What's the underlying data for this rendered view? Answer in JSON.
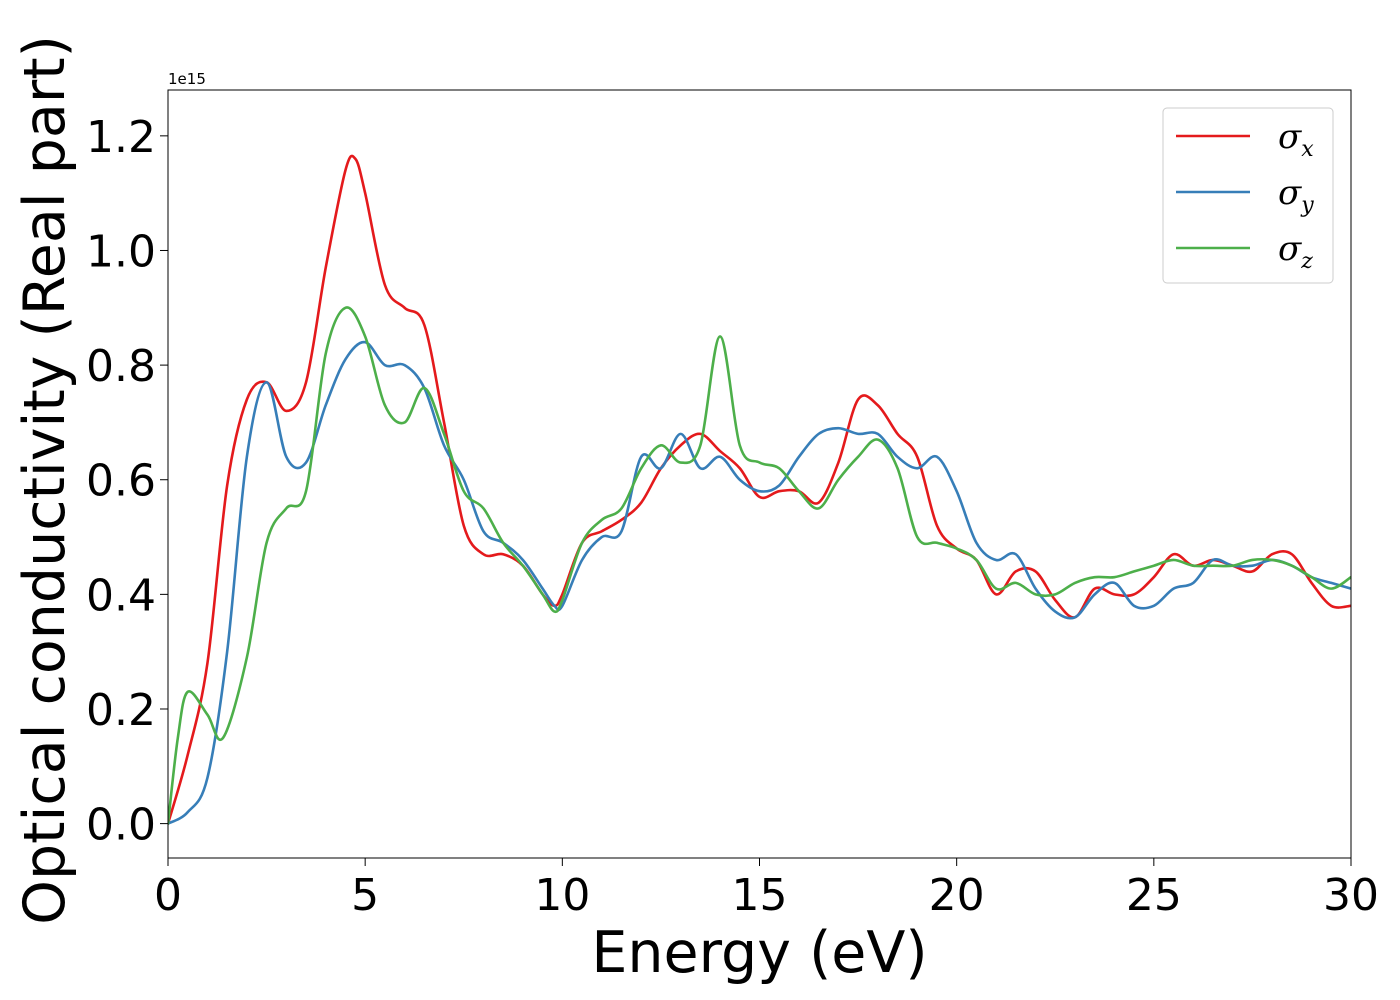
{
  "chart_data": {
    "type": "line",
    "xlabel": "Energy (eV)",
    "ylabel": "Optical conductivity (Real part)",
    "y_offset_label": "1e15",
    "xlim": [
      0,
      30
    ],
    "ylim": [
      -0.06,
      1.28
    ],
    "x_ticks": [
      0,
      5,
      10,
      15,
      20,
      25,
      30
    ],
    "x_tick_labels": [
      "0",
      "5",
      "10",
      "15",
      "20",
      "25",
      "30"
    ],
    "y_ticks": [
      0.0,
      0.2,
      0.4,
      0.6,
      0.8,
      1.0,
      1.2
    ],
    "y_tick_labels": [
      "0.0",
      "0.2",
      "0.4",
      "0.6",
      "0.8",
      "1.0",
      "1.2"
    ],
    "grid": false,
    "legend_position": "top-right",
    "series": [
      {
        "name": "σx",
        "symbol": "σ",
        "subscript": "x",
        "color": "#e41a1c",
        "x": [
          0,
          0.5,
          1.0,
          1.5,
          2.0,
          2.5,
          3.0,
          3.5,
          4.0,
          4.5,
          4.75,
          5.0,
          5.5,
          6.0,
          6.5,
          7.0,
          7.5,
          8.0,
          8.5,
          9.0,
          9.5,
          9.8,
          10.0,
          10.5,
          11.0,
          11.5,
          12.0,
          12.5,
          13.0,
          13.5,
          14.0,
          14.5,
          15.0,
          15.5,
          16.0,
          16.5,
          17.0,
          17.5,
          18.0,
          18.5,
          19.0,
          19.5,
          20.0,
          20.5,
          21.0,
          21.5,
          22.0,
          22.5,
          23.0,
          23.5,
          24.0,
          24.5,
          25.0,
          25.5,
          26.0,
          26.5,
          27.0,
          27.5,
          28.0,
          28.5,
          29.0,
          29.5,
          30.0
        ],
        "y": [
          0.0,
          0.12,
          0.28,
          0.59,
          0.74,
          0.77,
          0.72,
          0.77,
          0.97,
          1.14,
          1.16,
          1.1,
          0.94,
          0.9,
          0.87,
          0.7,
          0.52,
          0.47,
          0.47,
          0.45,
          0.4,
          0.38,
          0.4,
          0.49,
          0.51,
          0.53,
          0.56,
          0.62,
          0.66,
          0.68,
          0.65,
          0.62,
          0.57,
          0.58,
          0.58,
          0.56,
          0.63,
          0.74,
          0.73,
          0.68,
          0.64,
          0.52,
          0.48,
          0.46,
          0.4,
          0.44,
          0.44,
          0.39,
          0.36,
          0.41,
          0.4,
          0.4,
          0.43,
          0.47,
          0.45,
          0.46,
          0.45,
          0.44,
          0.47,
          0.47,
          0.42,
          0.38,
          0.38
        ]
      },
      {
        "name": "σy",
        "symbol": "σ",
        "subscript": "y",
        "color": "#377eb8",
        "x": [
          0,
          0.5,
          1.0,
          1.5,
          2.0,
          2.5,
          3.0,
          3.5,
          4.0,
          4.5,
          5.0,
          5.5,
          6.0,
          6.5,
          7.0,
          7.5,
          8.0,
          8.5,
          9.0,
          9.5,
          9.8,
          10.0,
          10.5,
          11.0,
          11.5,
          12.0,
          12.5,
          13.0,
          13.5,
          14.0,
          14.5,
          15.0,
          15.5,
          16.0,
          16.5,
          17.0,
          17.5,
          18.0,
          18.5,
          19.0,
          19.5,
          20.0,
          20.5,
          21.0,
          21.5,
          22.0,
          22.5,
          23.0,
          23.5,
          24.0,
          24.5,
          25.0,
          25.5,
          26.0,
          26.5,
          27.0,
          27.5,
          28.0,
          28.5,
          29.0,
          29.5,
          30.0
        ],
        "y": [
          0.0,
          0.02,
          0.08,
          0.3,
          0.64,
          0.77,
          0.64,
          0.63,
          0.73,
          0.81,
          0.84,
          0.8,
          0.8,
          0.76,
          0.66,
          0.6,
          0.51,
          0.49,
          0.46,
          0.41,
          0.38,
          0.38,
          0.46,
          0.5,
          0.51,
          0.64,
          0.62,
          0.68,
          0.62,
          0.64,
          0.6,
          0.58,
          0.59,
          0.64,
          0.68,
          0.69,
          0.68,
          0.68,
          0.64,
          0.62,
          0.64,
          0.58,
          0.49,
          0.46,
          0.47,
          0.41,
          0.37,
          0.36,
          0.4,
          0.42,
          0.38,
          0.38,
          0.41,
          0.42,
          0.46,
          0.45,
          0.45,
          0.46,
          0.45,
          0.43,
          0.42,
          0.41
        ]
      },
      {
        "name": "σz",
        "symbol": "σ",
        "subscript": "z",
        "color": "#4daf4a",
        "x": [
          0,
          0.25,
          0.5,
          1.0,
          1.4,
          2.0,
          2.5,
          3.0,
          3.5,
          4.0,
          4.5,
          5.0,
          5.5,
          6.0,
          6.5,
          7.0,
          7.5,
          8.0,
          8.5,
          9.0,
          9.5,
          9.8,
          10.0,
          10.5,
          11.0,
          11.5,
          12.0,
          12.5,
          13.0,
          13.5,
          14.0,
          14.5,
          15.0,
          15.5,
          16.0,
          16.5,
          17.0,
          17.5,
          18.0,
          18.5,
          19.0,
          19.5,
          20.0,
          20.5,
          21.0,
          21.5,
          22.0,
          22.5,
          23.0,
          23.5,
          24.0,
          24.5,
          25.0,
          25.5,
          26.0,
          26.5,
          27.0,
          27.5,
          28.0,
          28.5,
          29.0,
          29.5,
          30.0
        ],
        "y": [
          0.0,
          0.15,
          0.23,
          0.19,
          0.15,
          0.29,
          0.49,
          0.55,
          0.58,
          0.82,
          0.9,
          0.85,
          0.73,
          0.7,
          0.76,
          0.68,
          0.58,
          0.55,
          0.49,
          0.45,
          0.4,
          0.37,
          0.39,
          0.49,
          0.53,
          0.55,
          0.62,
          0.66,
          0.63,
          0.66,
          0.85,
          0.66,
          0.63,
          0.62,
          0.58,
          0.55,
          0.6,
          0.64,
          0.67,
          0.62,
          0.5,
          0.49,
          0.48,
          0.46,
          0.41,
          0.42,
          0.4,
          0.4,
          0.42,
          0.43,
          0.43,
          0.44,
          0.45,
          0.46,
          0.45,
          0.45,
          0.45,
          0.46,
          0.46,
          0.45,
          0.43,
          0.41,
          0.43
        ]
      }
    ]
  }
}
